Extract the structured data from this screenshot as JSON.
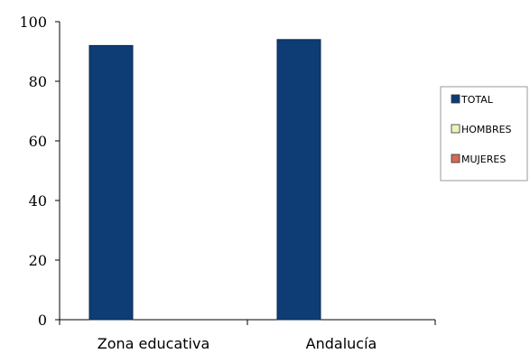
{
  "chart_data": {
    "type": "bar",
    "categories": [
      "Zona educativa",
      "Andalucía"
    ],
    "series": [
      {
        "name": "TOTAL",
        "values": [
          92,
          94
        ],
        "color": "#0e3c74"
      },
      {
        "name": "HOMBRES",
        "values": [
          null,
          null
        ],
        "color": "#eef2bf"
      },
      {
        "name": "MUJERES",
        "values": [
          null,
          null
        ],
        "color": "#d36a5a"
      }
    ],
    "yticks": [
      0,
      20,
      40,
      60,
      80,
      100
    ],
    "ylim": [
      0,
      100
    ],
    "grid": false,
    "legend_position": "right"
  }
}
